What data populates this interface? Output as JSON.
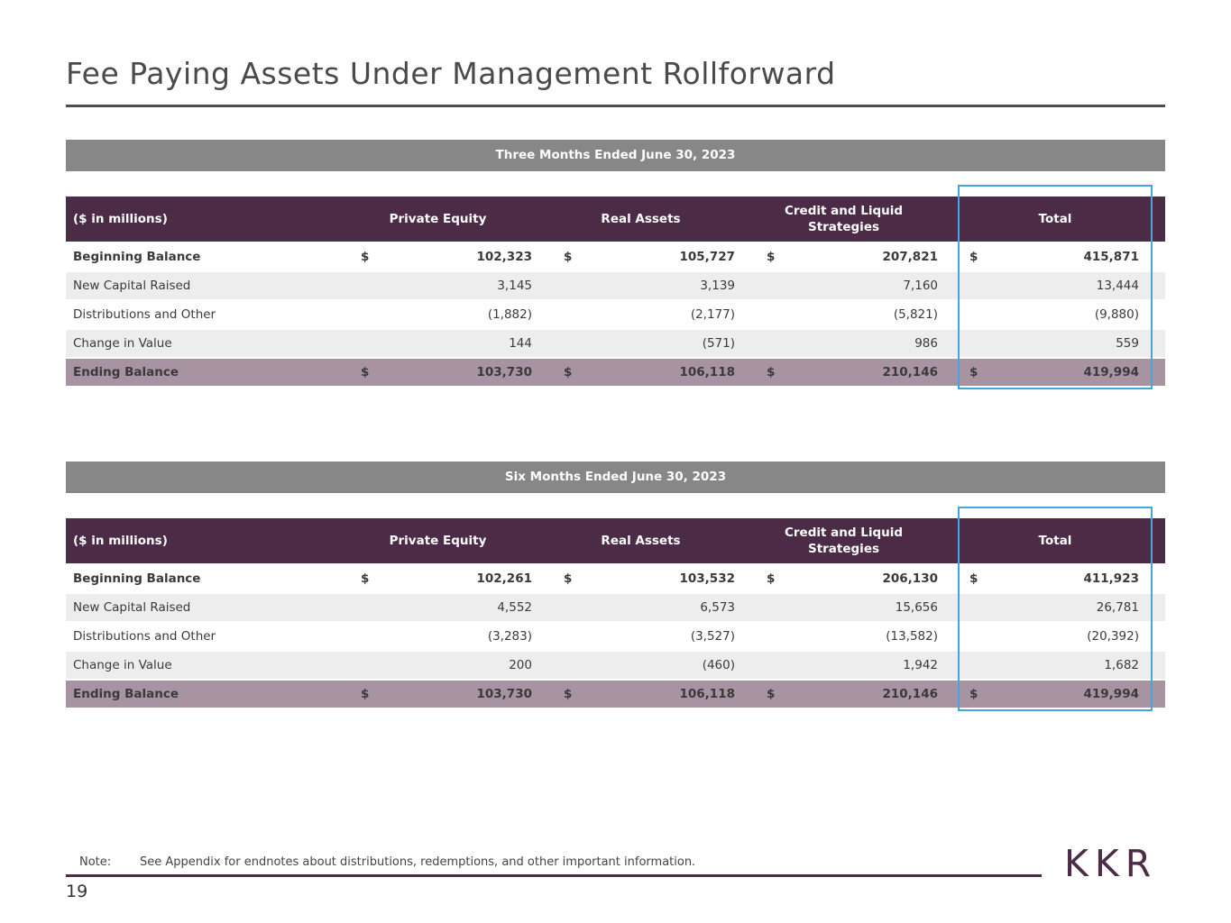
{
  "title": "Fee Paying Assets Under Management Rollforward",
  "currency_symbol": "$",
  "tables": [
    {
      "period": "Three Months Ended June 30, 2023",
      "columns": [
        "($ in millions)",
        "Private Equity",
        "Real Assets",
        "Credit and Liquid Strategies",
        "Total"
      ],
      "rows": [
        {
          "label": "Beginning Balance",
          "values": [
            "102,323",
            "105,727",
            "207,821",
            "415,871"
          ]
        },
        {
          "label": "New Capital Raised",
          "values": [
            "3,145",
            "3,139",
            "7,160",
            "13,444"
          ]
        },
        {
          "label": "Distributions and Other",
          "values": [
            "(1,882)",
            "(2,177)",
            "(5,821)",
            "(9,880)"
          ]
        },
        {
          "label": "Change in Value",
          "values": [
            "144",
            "(571)",
            "986",
            "559"
          ]
        },
        {
          "label": "Ending Balance",
          "values": [
            "103,730",
            "106,118",
            "210,146",
            "419,994"
          ]
        }
      ]
    },
    {
      "period": "Six Months Ended June 30, 2023",
      "columns": [
        "($ in millions)",
        "Private Equity",
        "Real Assets",
        "Credit and Liquid Strategies",
        "Total"
      ],
      "rows": [
        {
          "label": "Beginning Balance",
          "values": [
            "102,261",
            "103,532",
            "206,130",
            "411,923"
          ]
        },
        {
          "label": "New Capital Raised",
          "values": [
            "4,552",
            "6,573",
            "15,656",
            "26,781"
          ]
        },
        {
          "label": "Distributions and Other",
          "values": [
            "(3,283)",
            "(3,527)",
            "(13,582)",
            "(20,392)"
          ]
        },
        {
          "label": "Change in Value",
          "values": [
            "200",
            "(460)",
            "1,942",
            "1,682"
          ]
        },
        {
          "label": "Ending Balance",
          "values": [
            "103,730",
            "106,118",
            "210,146",
            "419,994"
          ]
        }
      ]
    }
  ],
  "footer": {
    "note_label": "Note:",
    "note_text": "See Appendix for endnotes about distributions, redemptions, and other important information.",
    "page_number": "19",
    "logo_text": "KKR"
  },
  "colors": {
    "header_purple": "#4B2B46",
    "ending_row_mauve": "#A893A3",
    "period_band_gray": "#878787",
    "stripe_gray": "#EDEDED",
    "highlight_blue": "#45A6DA",
    "title_gray": "#4A4A4A"
  }
}
